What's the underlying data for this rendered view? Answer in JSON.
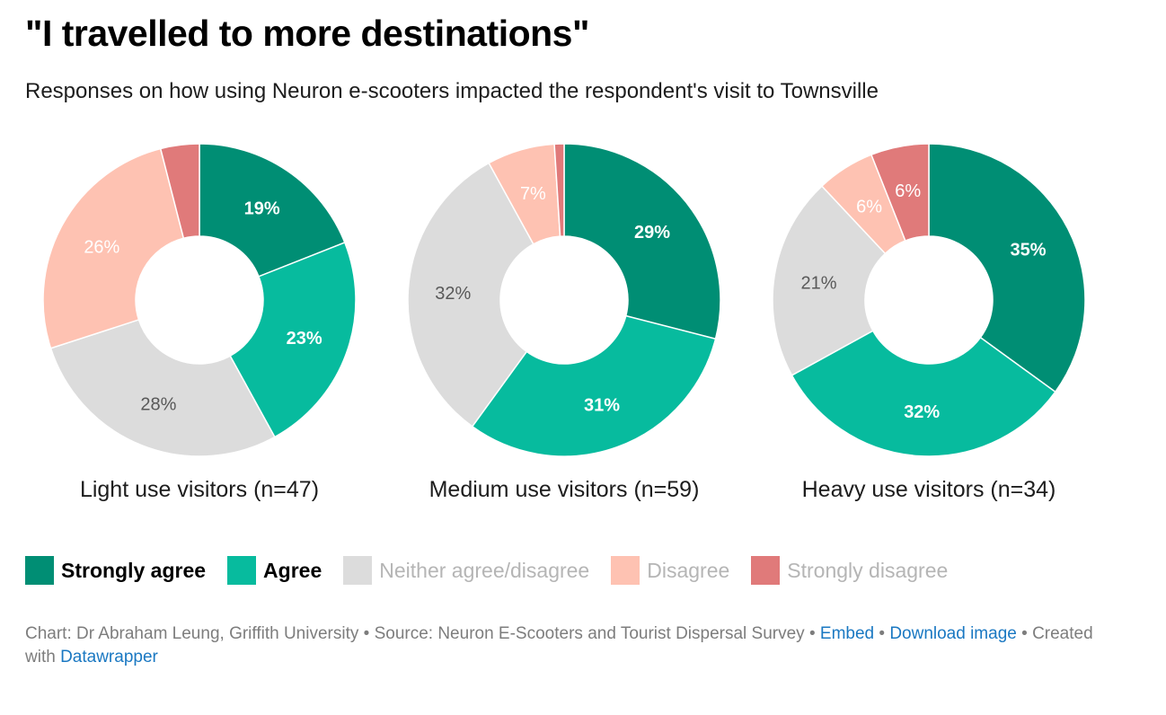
{
  "title": "\"I travelled to more destinations\"",
  "subtitle": "Responses on how using Neuron e-scooters impacted the respondent's visit to Townsville",
  "chart_data": [
    {
      "type": "pie",
      "style": "donut",
      "title": "Light use visitors (n=47)",
      "categories": [
        "Strongly agree",
        "Agree",
        "Neither agree/disagree",
        "Disagree",
        "Strongly disagree"
      ],
      "values": [
        19,
        23,
        28,
        26,
        4
      ],
      "labels": [
        "19%",
        "23%",
        "28%",
        "26%",
        ""
      ]
    },
    {
      "type": "pie",
      "style": "donut",
      "title": "Medium use visitors (n=59)",
      "categories": [
        "Strongly agree",
        "Agree",
        "Neither agree/disagree",
        "Disagree",
        "Strongly disagree"
      ],
      "values": [
        29,
        31,
        32,
        7,
        1
      ],
      "labels": [
        "29%",
        "31%",
        "32%",
        "7%",
        ""
      ]
    },
    {
      "type": "pie",
      "style": "donut",
      "title": "Heavy use visitors (n=34)",
      "categories": [
        "Strongly agree",
        "Agree",
        "Neither agree/disagree",
        "Disagree",
        "Strongly disagree"
      ],
      "values": [
        35,
        32,
        21,
        6,
        6
      ],
      "labels": [
        "35%",
        "32%",
        "21%",
        "6%",
        "6%"
      ]
    }
  ],
  "legend": [
    {
      "label": "Strongly agree",
      "color": "#008e74"
    },
    {
      "label": "Agree",
      "color": "#07bb9e"
    },
    {
      "label": "Neither agree/disagree",
      "color": "#dcdcdc"
    },
    {
      "label": "Disagree",
      "color": "#fec2b2"
    },
    {
      "label": "Strongly disagree",
      "color": "#e07a7a"
    }
  ],
  "label_colors": [
    "#ffffff",
    "#ffffff",
    "#595959",
    "#ffffff",
    "#ffffff"
  ],
  "footer": {
    "credit": "Chart: Dr Abraham Leung, Griffith University",
    "source": "Source: Neuron E-Scooters and Tourist Dispersal Survey",
    "embed": "Embed",
    "download": "Download image",
    "created": "Created with",
    "tool": "Datawrapper",
    "sep": " • "
  }
}
